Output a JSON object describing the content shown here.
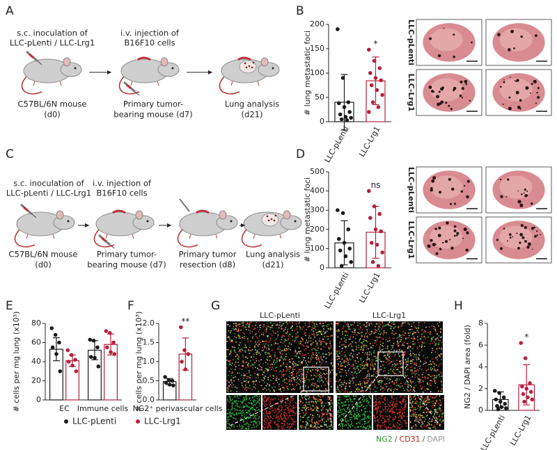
{
  "panels": [
    "A",
    "B",
    "C",
    "D",
    "E",
    "F",
    "G",
    "H"
  ],
  "schematic_a": {
    "step1": [
      "s.c. inoculation of",
      "LLC-pLenti / LLC-Lrg1"
    ],
    "step2": [
      "i.v. injection of",
      "B16F10 cells"
    ],
    "stages": [
      [
        "C57BL/6N mouse",
        "(d0)"
      ],
      [
        "Primary tumor-",
        "bearing mouse (d7)"
      ],
      [
        "Lung analysis",
        "(d21)"
      ]
    ]
  },
  "schematic_c": {
    "step1": [
      "s.c. inoculation of",
      "LLC-pLenti / LLC-Lrg1"
    ],
    "step2": [
      "i.v. injection of",
      "B16F10 cells"
    ],
    "stages": [
      [
        "C57BL/6N mouse",
        "(d0)"
      ],
      [
        "Primary tumor-",
        "bearing mouse (d7)"
      ],
      [
        "Primary tumor",
        "resection (d8)"
      ],
      [
        "Lung analysis",
        "(d21)"
      ]
    ]
  },
  "photos_b": {
    "rows": [
      "LLC-pLenti",
      "LLC-Lrg1"
    ]
  },
  "photos_d": {
    "rows": [
      "LLC-pLenti",
      "LLC-Lrg1"
    ]
  },
  "microscopy_g": {
    "columns": [
      "LLC-pLenti",
      "LLC-Lrg1"
    ],
    "stain_legend": [
      "NG2",
      "/",
      "CD31",
      "/",
      "DAPI"
    ]
  },
  "chart_data": [
    {
      "type": "bar",
      "y_label": "# lung metastatic foci",
      "ylim": [
        0,
        200
      ],
      "yticks": [
        0,
        50,
        100,
        150,
        200
      ],
      "categories": [
        "LLC-pLenti",
        "LLC-Lrg1"
      ],
      "significance": [
        null,
        "*"
      ],
      "series": [
        {
          "colors": [
            "#1a1a1a",
            "#b5203c"
          ],
          "values": [
            40,
            84
          ],
          "errors": [
            57,
            49
          ],
          "points": [
            [
              190,
              90,
              40,
              38,
              30,
              20,
              15,
              10,
              8,
              5,
              3
            ],
            [
              148,
              125,
              110,
              100,
              90,
              85,
              75,
              65,
              55,
              40,
              30,
              20
            ]
          ]
        }
      ]
    },
    {
      "type": "bar",
      "y_label": "# lung metastatic foci",
      "ylim": [
        0,
        500
      ],
      "yticks": [
        0,
        100,
        200,
        300,
        400,
        500
      ],
      "categories": [
        "LLC-pLenti",
        "LLC-Lrg1"
      ],
      "significance": [
        null,
        "ns"
      ],
      "series": [
        {
          "colors": [
            "#1a1a1a",
            "#b5203c"
          ],
          "values": [
            130,
            185
          ],
          "errors": [
            115,
            135
          ],
          "points": [
            [
              300,
              285,
              200,
              150,
              130,
              100,
              90,
              60,
              30,
              10
            ],
            [
              400,
              320,
              280,
              260,
              200,
              190,
              130,
              120,
              80,
              30,
              10
            ]
          ]
        }
      ]
    },
    {
      "type": "bar",
      "y_label": "# cells per mg lung (x10³)",
      "ylim": [
        0,
        80
      ],
      "yticks": [
        0,
        20,
        40,
        60,
        80
      ],
      "categories": [
        "EC",
        "Immune cells"
      ],
      "series": [
        {
          "name": "LLC-pLenti",
          "color": "#1a1a1a",
          "values": [
            53,
            52
          ],
          "errors": [
            12,
            10
          ],
          "points": [
            [
              75,
              68,
              60,
              55,
              48,
              30
            ],
            [
              63,
              62,
              55,
              45,
              44,
              35
            ]
          ]
        },
        {
          "name": "LLC-Lrg1",
          "color": "#b5203c",
          "values": [
            41,
            58
          ],
          "errors": [
            6,
            11
          ],
          "points": [
            [
              52,
              47,
              42,
              40,
              36,
              30
            ],
            [
              72,
              70,
              60,
              55,
              50,
              48
            ]
          ]
        }
      ]
    },
    {
      "type": "bar",
      "y_label": "# cells per mg lung (x10³)",
      "ylim": [
        0,
        2
      ],
      "yticks": [
        {
          "value": 0,
          "label": "0.0"
        },
        0.5,
        {
          "value": 1,
          "label": "1.0"
        },
        1.5,
        {
          "value": 2,
          "label": "2.0"
        }
      ],
      "categories": [
        "NG2⁺ perivascular cells"
      ],
      "significance": [
        "**"
      ],
      "series": [
        {
          "color": "#1a1a1a",
          "values": [
            0.48
          ],
          "errors": [
            0.08
          ],
          "points": [
            [
              0.6,
              0.52,
              0.5,
              0.45,
              0.4,
              0.38
            ]
          ]
        },
        {
          "color": "#b5203c",
          "values": [
            1.2
          ],
          "errors": [
            0.42
          ],
          "points": [
            [
              1.9,
              1.3,
              1.2,
              1.0,
              0.8
            ]
          ]
        }
      ]
    },
    {
      "type": "bar",
      "y_label": "NG2 / DAPI area (fold)",
      "ylim": [
        0,
        8
      ],
      "yticks": [
        0,
        2,
        4,
        6,
        8
      ],
      "categories": [
        "LLC-pLenti",
        "LLC-Lrg1"
      ],
      "significance": [
        null,
        "*"
      ],
      "series": [
        {
          "colors": [
            "#1a1a1a",
            "#b5203c"
          ],
          "values": [
            1.0,
            2.35
          ],
          "errors": [
            0.7,
            1.85
          ],
          "points": [
            [
              1.8,
              1.6,
              1.2,
              1.0,
              0.8,
              0.6,
              0.4,
              0.3,
              0.2,
              0.1
            ],
            [
              6.2,
              4.8,
              2.5,
              2.2,
              2.0,
              1.7,
              1.5,
              1.2,
              1.0,
              0.8
            ]
          ]
        }
      ]
    }
  ]
}
